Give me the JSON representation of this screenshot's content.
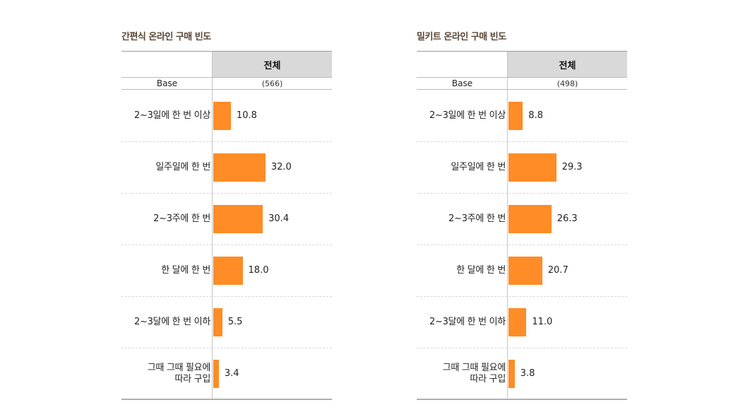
{
  "chart_data": [
    {
      "type": "bar",
      "orientation": "horizontal",
      "title": "간편식 온라인 구매 빈도",
      "column_header": "전체",
      "base_label": "Base",
      "base_value": "(566)",
      "categories": [
        "2~3일에 한 번 이상",
        "일주일에 한 번",
        "2~3주에 한 번",
        "한 달에 한 번",
        "2~3달에 한 번 이하",
        "그때 그때 필요에\n따라 구입"
      ],
      "values": [
        10.8,
        32.0,
        30.4,
        18.0,
        5.5,
        3.4
      ],
      "value_labels": [
        "10.8",
        "32.0",
        "30.4",
        "18.0",
        "5.5",
        "3.4"
      ],
      "xlim": [
        0,
        65
      ],
      "color": "#ff8c26"
    },
    {
      "type": "bar",
      "orientation": "horizontal",
      "title": "밀키트 온라인 구매 빈도",
      "column_header": "전체",
      "base_label": "Base",
      "base_value": "(498)",
      "categories": [
        "2~3일에 한 번 이상",
        "일주일에 한 번",
        "2~3주에 한 번",
        "한 달에 한 번",
        "2~3달에 한 번 이하",
        "그때 그때 필요에\n따라 구입"
      ],
      "values": [
        8.8,
        29.3,
        26.3,
        20.7,
        11.0,
        3.8
      ],
      "value_labels": [
        "8.8",
        "29.3",
        "26.3",
        "20.7",
        "11.0",
        "3.8"
      ],
      "xlim": [
        0,
        65
      ],
      "color": "#ff8c26"
    }
  ]
}
